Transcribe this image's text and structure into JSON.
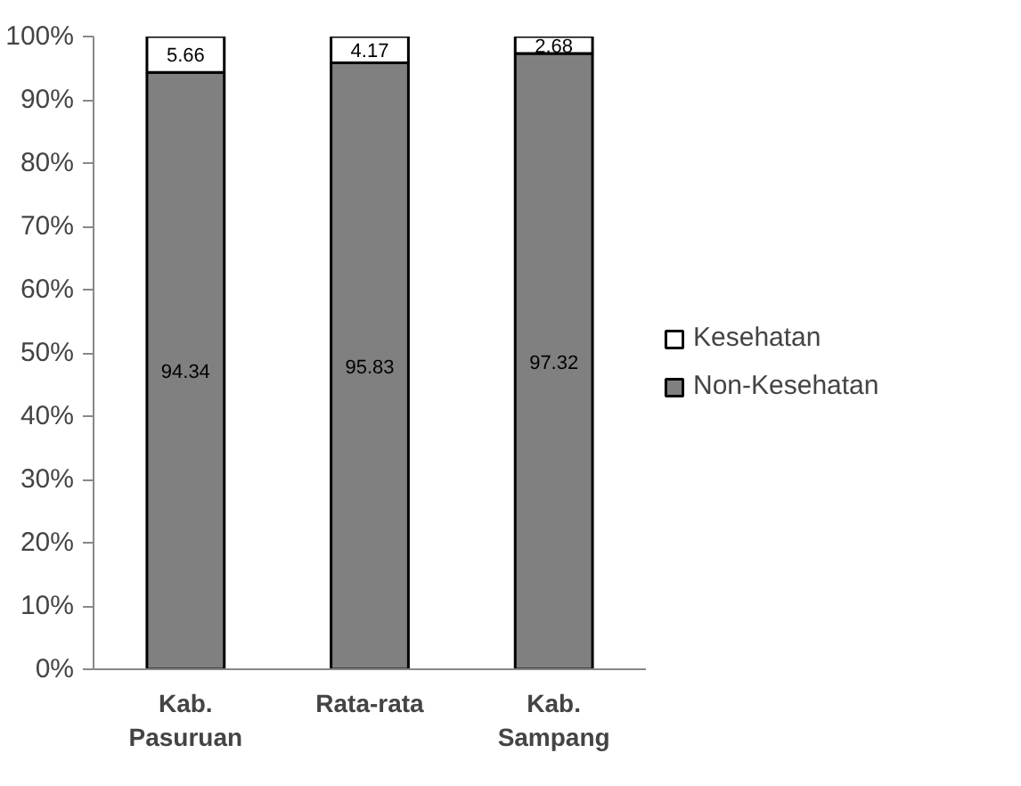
{
  "chart_data": {
    "type": "bar",
    "stacked": true,
    "categories": [
      "Kab.\nPasuruan",
      "Rata-rata",
      "Kab.\nSampang"
    ],
    "series": [
      {
        "name": "Non-Kesehatan",
        "color": "#808080",
        "values": [
          94.34,
          95.83,
          97.32
        ]
      },
      {
        "name": "Kesehatan",
        "color": "#ffffff",
        "values": [
          5.66,
          4.17,
          2.68
        ]
      }
    ],
    "ylim": [
      0,
      100
    ],
    "yticks": [
      {
        "value": 0,
        "label": "0%"
      },
      {
        "value": 10,
        "label": "10%"
      },
      {
        "value": 20,
        "label": "20%"
      },
      {
        "value": 30,
        "label": "30%"
      },
      {
        "value": 40,
        "label": "40%"
      },
      {
        "value": 50,
        "label": "50%"
      },
      {
        "value": 60,
        "label": "60%"
      },
      {
        "value": 70,
        "label": "70%"
      },
      {
        "value": 80,
        "label": "80%"
      },
      {
        "value": 90,
        "label": "90%"
      },
      {
        "value": 100,
        "label": "100%"
      }
    ],
    "data_labels": true,
    "grid": false,
    "legend": "right"
  }
}
